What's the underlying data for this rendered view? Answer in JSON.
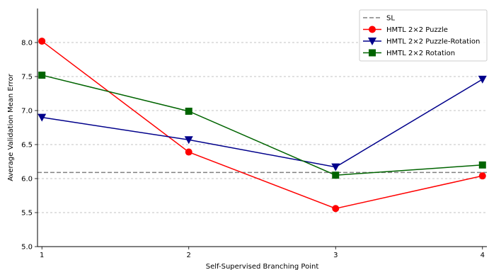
{
  "chart_data": {
    "type": "line",
    "title": "",
    "xlabel": "Self-Supervised Branching Point",
    "ylabel": "Average Validation Mean Error",
    "x": [
      1,
      2,
      3,
      4
    ],
    "xlim": [
      0.97,
      4.03
    ],
    "ylim": [
      5.0,
      8.5
    ],
    "x_ticks": [
      "1",
      "2",
      "3",
      "4"
    ],
    "y_ticks": [
      "5.0",
      "5.5",
      "6.0",
      "6.5",
      "7.0",
      "7.5",
      "8.0"
    ],
    "y_tick_values": [
      5.0,
      5.5,
      6.0,
      6.5,
      7.0,
      7.5,
      8.0
    ],
    "grid": "horizontal dashed",
    "legend_position": "top-right",
    "reference_line": {
      "name": "SL",
      "value": 6.09,
      "color": "#808080",
      "style": "dashed"
    },
    "series": [
      {
        "name": "HMTL 2×2 Puzzle",
        "values": [
          8.02,
          6.39,
          5.56,
          6.04
        ],
        "color": "#ff0000",
        "marker": "circle"
      },
      {
        "name": "HMTL 2×2 Puzzle-Rotation",
        "values": [
          6.9,
          6.57,
          6.17,
          7.46
        ],
        "color": "#00008b",
        "marker": "triangle-down"
      },
      {
        "name": "HMTL 2×2 Rotation",
        "values": [
          7.52,
          6.99,
          6.05,
          6.2
        ],
        "color": "#006400",
        "marker": "square"
      }
    ]
  }
}
